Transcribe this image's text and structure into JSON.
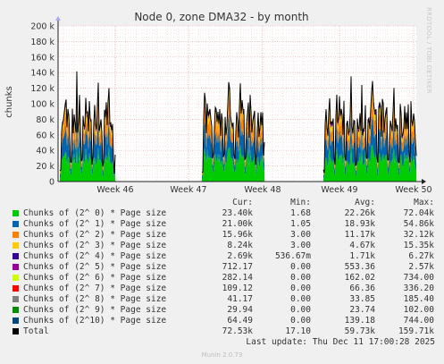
{
  "chart_data": {
    "type": "area",
    "title": "Node 0, zone DMA32 - by month",
    "ylabel": "chunks",
    "ylim": [
      0,
      200000
    ],
    "yticks": [
      {
        "value": 0,
        "label": "0"
      },
      {
        "value": 20000,
        "label": "20 k"
      },
      {
        "value": 40000,
        "label": "40 k"
      },
      {
        "value": 60000,
        "label": "60 k"
      },
      {
        "value": 80000,
        "label": "80 k"
      },
      {
        "value": 100000,
        "label": "100 k"
      },
      {
        "value": 120000,
        "label": "120 k"
      },
      {
        "value": 140000,
        "label": "140 k"
      },
      {
        "value": 160000,
        "label": "160 k"
      },
      {
        "value": 180000,
        "label": "180 k"
      },
      {
        "value": 200000,
        "label": "200 k"
      }
    ],
    "xticks": [
      "Week 46",
      "Week 47",
      "Week 48",
      "Week 49",
      "Week 50"
    ],
    "stacked": true,
    "grid": true,
    "note": "Stacked areas visible in three bursts (Week 45/46, Week 47/48, Week 49/50) with gaps in between."
  },
  "legend": {
    "headers": {
      "cur": "Cur:",
      "min": "Min:",
      "avg": "Avg:",
      "max": "Max:"
    },
    "rows": [
      {
        "label": "Chunks of (2^ 0) * Page size",
        "color": "#00cc00",
        "cur": "23.40k",
        "min": "1.68",
        "avg": "22.26k",
        "max": "72.04k"
      },
      {
        "label": "Chunks of (2^ 1) * Page size",
        "color": "#0066b3",
        "cur": "21.00k",
        "min": "1.05",
        "avg": "18.93k",
        "max": "54.86k"
      },
      {
        "label": "Chunks of (2^ 2) * Page size",
        "color": "#ff8000",
        "cur": "15.96k",
        "min": "3.00",
        "avg": "11.17k",
        "max": "32.12k"
      },
      {
        "label": "Chunks of (2^ 3) * Page size",
        "color": "#ffcc00",
        "cur": "8.24k",
        "min": "3.00",
        "avg": "4.67k",
        "max": "15.35k"
      },
      {
        "label": "Chunks of (2^ 4) * Page size",
        "color": "#330099",
        "cur": "2.69k",
        "min": "536.67m",
        "avg": "1.71k",
        "max": "6.27k"
      },
      {
        "label": "Chunks of (2^ 5) * Page size",
        "color": "#990099",
        "cur": "712.17",
        "min": "0.00",
        "avg": "553.36",
        "max": "2.57k"
      },
      {
        "label": "Chunks of (2^ 6) * Page size",
        "color": "#ccff00",
        "cur": "282.14",
        "min": "0.00",
        "avg": "162.02",
        "max": "734.00"
      },
      {
        "label": "Chunks of (2^ 7) * Page size",
        "color": "#ff0000",
        "cur": "109.12",
        "min": "0.00",
        "avg": "66.36",
        "max": "336.20"
      },
      {
        "label": "Chunks of (2^ 8) * Page size",
        "color": "#808080",
        "cur": "41.17",
        "min": "0.00",
        "avg": "33.85",
        "max": "185.40"
      },
      {
        "label": "Chunks of (2^ 9) * Page size",
        "color": "#008f00",
        "cur": "29.94",
        "min": "0.00",
        "avg": "23.74",
        "max": "102.00"
      },
      {
        "label": "Chunks of (2^10) * Page size",
        "color": "#00487d",
        "cur": "64.49",
        "min": "0.00",
        "avg": "139.18",
        "max": "744.00"
      },
      {
        "label": "Total",
        "color": "#000000",
        "cur": "72.53k",
        "min": "17.10",
        "avg": "59.73k",
        "max": "159.71k"
      }
    ]
  },
  "last_update": "Last update: Thu Dec 11 17:00:28 2025",
  "footer": "Munin 2.0.73",
  "watermark": "RRDTOOL / TOBI OETIKER"
}
